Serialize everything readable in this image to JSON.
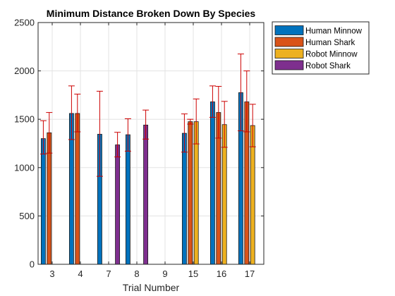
{
  "chart_data": {
    "type": "bar",
    "title": "Minimum Distance Broken Down By Species",
    "xlabel": "Trial Number",
    "ylabel": "",
    "ylim": [
      0,
      2500
    ],
    "yticks": [
      0,
      500,
      1000,
      1500,
      2000,
      2500
    ],
    "grid": true,
    "legend_position": "outside-top-right",
    "categories": [
      "3",
      "4",
      "7",
      "8",
      "9",
      "15",
      "16",
      "17"
    ],
    "series": [
      {
        "name": "Human Minnow",
        "color": "#0072BD",
        "values": [
          1300,
          1560,
          1345,
          1340,
          null,
          1355,
          1680,
          1775
        ],
        "error_low": [
          1140,
          1290,
          910,
          1170,
          null,
          1160,
          1520,
          1380
        ],
        "error_high": [
          1485,
          1845,
          1790,
          1505,
          null,
          1555,
          1845,
          2175
        ]
      },
      {
        "name": "Human Shark",
        "color": "#D95319",
        "values": [
          1360,
          1560,
          null,
          null,
          null,
          1475,
          1570,
          1680
        ],
        "error_low": [
          1150,
          1370,
          null,
          null,
          null,
          1450,
          1305,
          1370
        ],
        "error_high": [
          1570,
          1760,
          null,
          null,
          null,
          1500,
          1840,
          2000
        ]
      },
      {
        "name": "Robot Minnow",
        "color": "#EDB120",
        "values": [
          null,
          null,
          null,
          null,
          null,
          1475,
          1445,
          1435
        ],
        "error_low": [
          null,
          null,
          null,
          null,
          null,
          1245,
          1210,
          1215
        ],
        "error_high": [
          null,
          null,
          null,
          null,
          null,
          1710,
          1685,
          1655
        ]
      },
      {
        "name": "Robot Shark",
        "color": "#7E2F8E",
        "values": [
          null,
          null,
          1235,
          1440,
          null,
          null,
          null,
          null
        ],
        "error_low": [
          null,
          null,
          1110,
          1295,
          null,
          null,
          null,
          null
        ],
        "error_high": [
          null,
          null,
          1365,
          1595,
          null,
          null,
          null,
          null
        ]
      }
    ],
    "error_bar_color": "#CC0000"
  }
}
